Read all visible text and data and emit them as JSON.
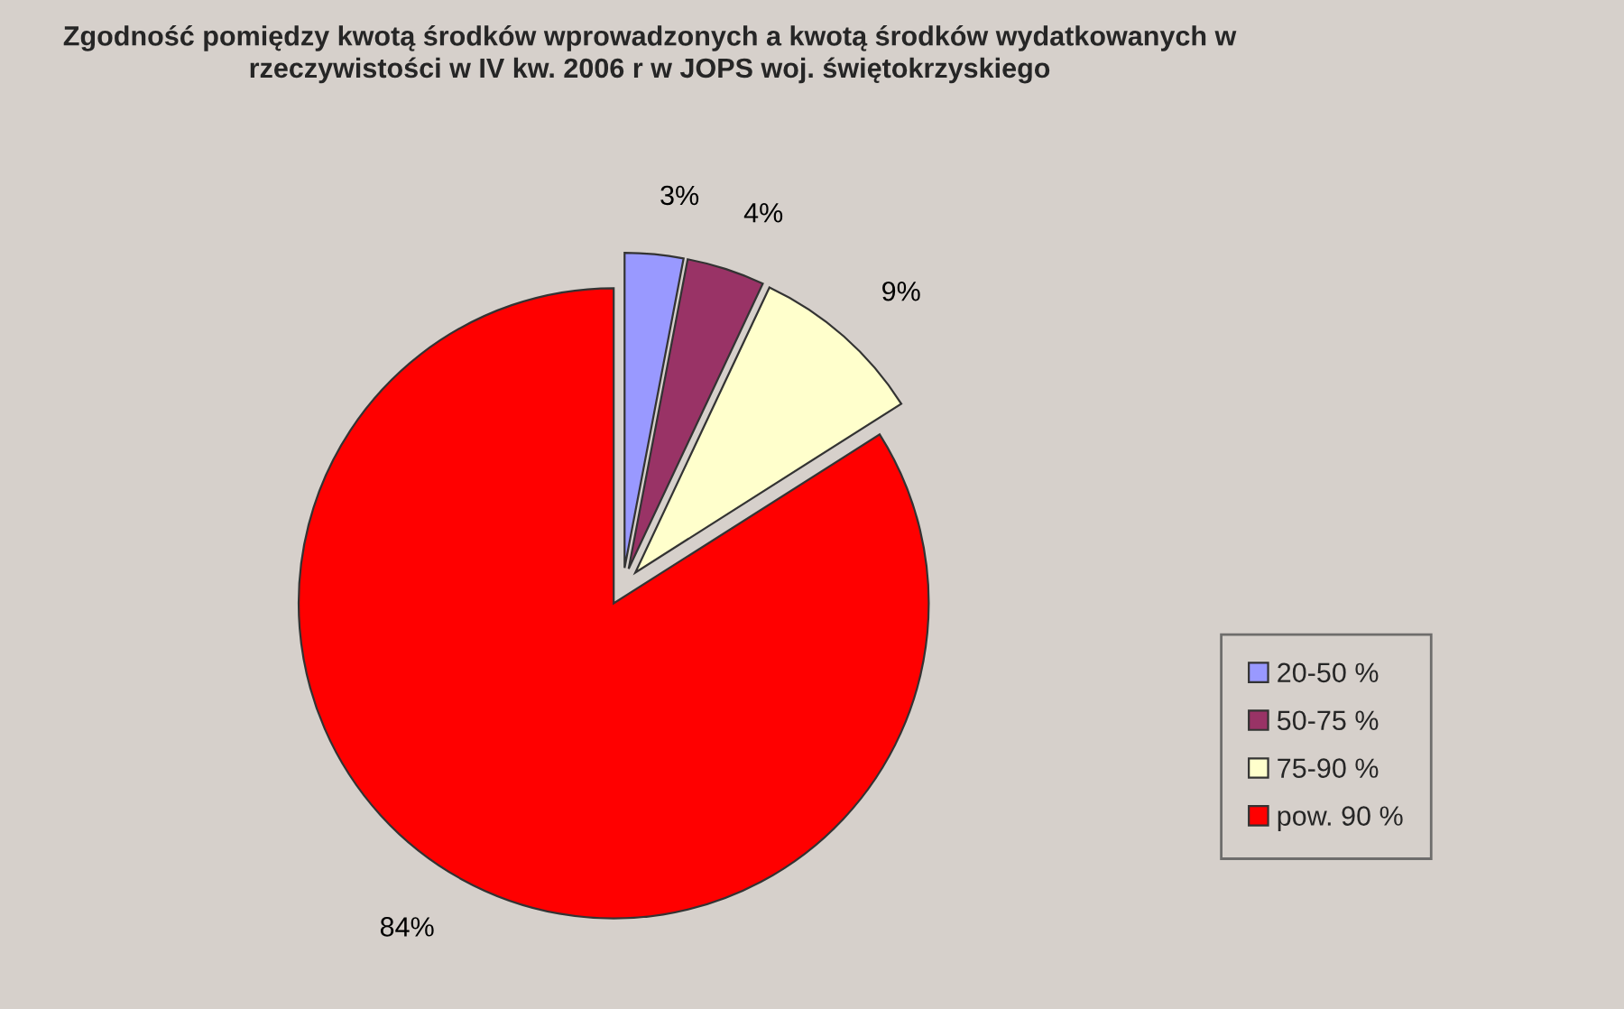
{
  "chart_data": {
    "type": "pie",
    "title": "Zgodność pomiędzy kwotą środków wprowadzonych a kwotą środków wydatkowanych w rzeczywistości w IV kw. 2006 r w JOPS woj. świętokrzyskiego",
    "categories": [
      "20-50 %",
      "50-75 %",
      "75-90 %",
      "pow. 90 %"
    ],
    "values": [
      3,
      4,
      9,
      84
    ],
    "value_labels": [
      "3%",
      "4%",
      "9%",
      "84%"
    ],
    "colors": [
      "#9999ff",
      "#993366",
      "#ffffcc",
      "#ff0000"
    ],
    "legend": "right"
  }
}
